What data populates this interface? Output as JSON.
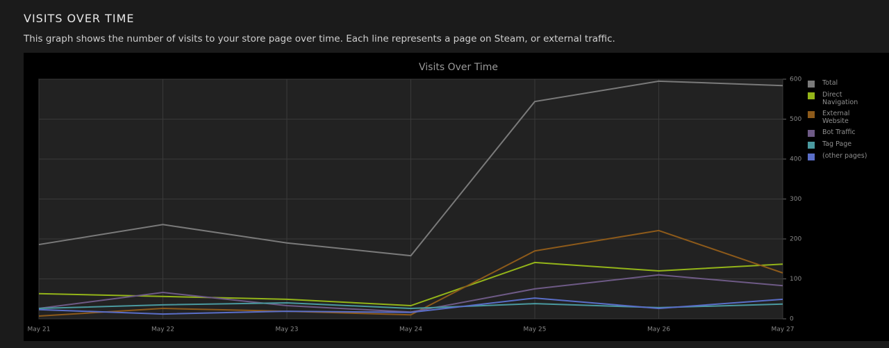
{
  "header": {
    "title": "VISITS OVER TIME",
    "description": "This graph shows the number of visits to your store page over time. Each line represents a page on Steam, or external traffic."
  },
  "chart_data": {
    "type": "line",
    "title": "Visits Over Time",
    "categories": [
      "May 21",
      "May 22",
      "May 23",
      "May 24",
      "May 25",
      "May 26",
      "May 27"
    ],
    "series": [
      {
        "name": "Total",
        "color": "#7a7a7a",
        "values": [
          186,
          236,
          190,
          158,
          544,
          595,
          584
        ]
      },
      {
        "name": "Direct Navigation",
        "color": "#94b519",
        "values": [
          63,
          56,
          49,
          33,
          141,
          120,
          137
        ]
      },
      {
        "name": "External Website",
        "color": "#8d5a1a",
        "values": [
          7,
          26,
          19,
          10,
          170,
          221,
          115
        ]
      },
      {
        "name": "Bot Traffic",
        "color": "#6e5a86",
        "values": [
          26,
          66,
          33,
          17,
          75,
          110,
          83
        ]
      },
      {
        "name": "Tag Page",
        "color": "#4a9aa0",
        "values": [
          26,
          35,
          40,
          26,
          38,
          28,
          37
        ]
      },
      {
        "name": "(other pages)",
        "color": "#5a6ec8",
        "values": [
          23,
          12,
          19,
          16,
          52,
          26,
          49
        ]
      }
    ],
    "ylim": [
      0,
      600
    ],
    "yticks": [
      0,
      100,
      200,
      300,
      400,
      500,
      600
    ],
    "grid": true,
    "legend": "right"
  }
}
